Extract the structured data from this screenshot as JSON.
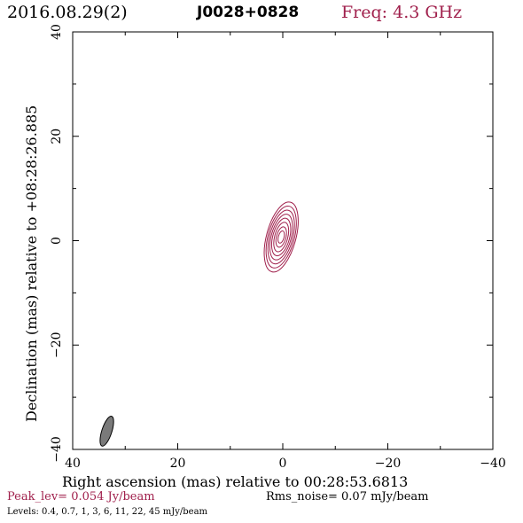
{
  "header": {
    "date": "2016.08.29(2)",
    "source": "J0028+0828",
    "freq": "Freq: 4.3 GHz"
  },
  "footer": {
    "peak": "Peak_lev=  0.054 Jy/beam",
    "rms": "Rms_noise= 0.07 mJy/beam",
    "levels": "Levels: 0.4, 0.7,   1,   3,   6,  11,  22,  45 mJy/beam"
  },
  "colors": {
    "contour": "#a0204c",
    "beam": "#7a7a7a",
    "axes": "#000000"
  },
  "chart_data": {
    "type": "contour",
    "xlabel": "Right ascension (mas) relative to 00:28:53.6813",
    "ylabel": "Declination (mas) relative to +08:28:26.885",
    "xlim": [
      40,
      -40
    ],
    "ylim": [
      -40,
      40
    ],
    "x_ticks": [
      40,
      20,
      0,
      -20,
      -40
    ],
    "y_ticks": [
      -40,
      -20,
      0,
      20,
      40
    ],
    "x_tick_labels": [
      "40",
      "20",
      "0",
      "−20",
      "−40"
    ],
    "y_tick_labels": [
      "−40",
      "−20",
      "0",
      "20",
      "40"
    ],
    "component": {
      "center": [
        0.3,
        0.7
      ],
      "position_angle_deg": 15,
      "contours": [
        {
          "level_mjy": 0.4,
          "a": 6.9,
          "b": 2.8
        },
        {
          "level_mjy": 0.7,
          "a": 6.1,
          "b": 2.5
        },
        {
          "level_mjy": 1,
          "a": 5.3,
          "b": 2.2
        },
        {
          "level_mjy": 3,
          "a": 4.5,
          "b": 1.9
        },
        {
          "level_mjy": 6,
          "a": 3.7,
          "b": 1.6
        },
        {
          "level_mjy": 11,
          "a": 2.9,
          "b": 1.25
        },
        {
          "level_mjy": 22,
          "a": 2.0,
          "b": 0.9
        },
        {
          "level_mjy": 45,
          "a": 1.2,
          "b": 0.55
        }
      ]
    },
    "beam": {
      "center": [
        33.5,
        -36.5
      ],
      "major": 6.0,
      "minor": 1.9,
      "position_angle_deg": 18
    }
  }
}
